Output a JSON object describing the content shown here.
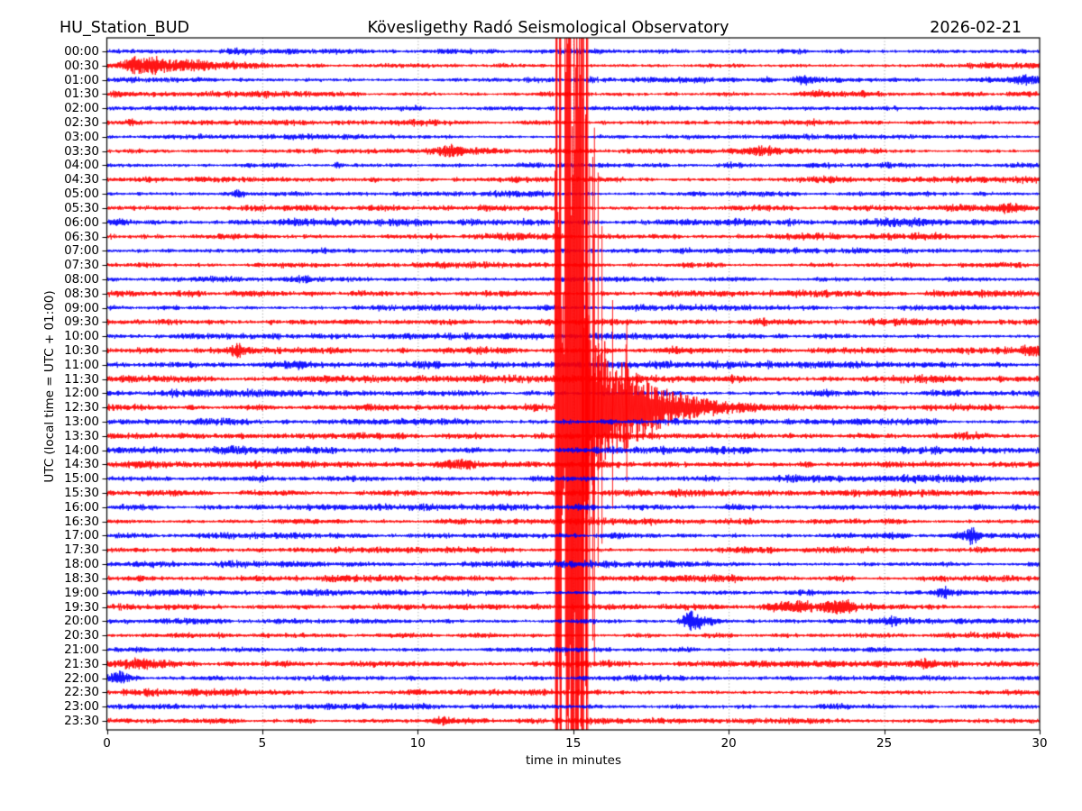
{
  "header": {
    "station": "HU_Station_BUD",
    "observatory": "Kövesligethy Radó Seismological Observatory",
    "date": "2026-02-21"
  },
  "axes": {
    "xlabel": "time in minutes",
    "ylabel": "UTC (local time = UTC + 01:00)",
    "x_tick_labels": [
      "0",
      "5",
      "10",
      "15",
      "20",
      "25",
      "30"
    ],
    "x_ticks_min": [
      0,
      5,
      10,
      15,
      20,
      25,
      30
    ],
    "x_gridlines_min": [
      5,
      10,
      15,
      20,
      25
    ],
    "x_range_min": [
      0,
      30
    ]
  },
  "chart_data": {
    "type": "line",
    "subtype": "helicorder",
    "minutes_per_row": 30,
    "rows_count": 48,
    "colors": {
      "b": "#0000ff",
      "r": "#ff0000",
      "frame": "#000000",
      "grid": "#999999"
    },
    "rows": [
      {
        "label": "00:00",
        "color": "b",
        "amp": 2.4,
        "events": []
      },
      {
        "label": "00:30",
        "color": "r",
        "amp": 2.4,
        "events": [
          [
            1.2,
            0.5,
            9
          ],
          [
            2.6,
            0.8,
            4
          ],
          [
            4.2,
            0.4,
            2.5
          ]
        ]
      },
      {
        "label": "01:00",
        "color": "b",
        "amp": 2.3,
        "events": [
          [
            21.2,
            0.15,
            3
          ],
          [
            22.4,
            0.2,
            4
          ],
          [
            29.6,
            0.35,
            5
          ]
        ]
      },
      {
        "label": "01:30",
        "color": "r",
        "amp": 2.5,
        "events": [
          [
            0.5,
            0.3,
            3
          ],
          [
            22.8,
            0.3,
            3
          ]
        ]
      },
      {
        "label": "02:00",
        "color": "b",
        "amp": 2.2,
        "events": [
          [
            10.0,
            0.12,
            3
          ]
        ]
      },
      {
        "label": "02:30",
        "color": "r",
        "amp": 2.4,
        "events": [
          [
            0.8,
            0.15,
            3
          ]
        ]
      },
      {
        "label": "03:00",
        "color": "b",
        "amp": 2.2,
        "events": []
      },
      {
        "label": "03:30",
        "color": "r",
        "amp": 2.4,
        "events": [
          [
            11.1,
            0.35,
            6
          ],
          [
            12.3,
            0.3,
            2.5
          ],
          [
            21.0,
            0.5,
            4
          ]
        ]
      },
      {
        "label": "04:00",
        "color": "b",
        "amp": 2.4,
        "events": [
          [
            7.4,
            0.08,
            4
          ]
        ]
      },
      {
        "label": "04:30",
        "color": "r",
        "amp": 2.7,
        "events": []
      },
      {
        "label": "05:00",
        "color": "b",
        "amp": 2.4,
        "events": [
          [
            4.3,
            0.15,
            2.5
          ]
        ]
      },
      {
        "label": "05:30",
        "color": "r",
        "amp": 2.7,
        "events": [
          [
            27.4,
            0.4,
            3
          ],
          [
            29.0,
            0.4,
            4
          ]
        ]
      },
      {
        "label": "06:00",
        "color": "b",
        "amp": 2.8,
        "events": [
          [
            0.3,
            0.2,
            3
          ],
          [
            25.5,
            0.8,
            2.5
          ]
        ]
      },
      {
        "label": "06:30",
        "color": "r",
        "amp": 2.8,
        "events": []
      },
      {
        "label": "07:00",
        "color": "b",
        "amp": 2.5,
        "events": []
      },
      {
        "label": "07:30",
        "color": "r",
        "amp": 2.6,
        "events": []
      },
      {
        "label": "08:00",
        "color": "b",
        "amp": 2.7,
        "events": []
      },
      {
        "label": "08:30",
        "color": "r",
        "amp": 2.9,
        "events": []
      },
      {
        "label": "09:00",
        "color": "b",
        "amp": 2.7,
        "events": []
      },
      {
        "label": "09:30",
        "color": "r",
        "amp": 3.0,
        "events": []
      },
      {
        "label": "10:00",
        "color": "b",
        "amp": 2.7,
        "events": []
      },
      {
        "label": "10:30",
        "color": "r",
        "amp": 3.0,
        "events": [
          [
            4.2,
            0.2,
            5
          ],
          [
            29.7,
            0.3,
            5
          ]
        ]
      },
      {
        "label": "11:00",
        "color": "b",
        "amp": 2.8,
        "events": [
          [
            5.9,
            0.5,
            3
          ]
        ]
      },
      {
        "label": "11:30",
        "color": "r",
        "amp": 3.0,
        "events": [
          [
            0.6,
            0.15,
            3
          ]
        ]
      },
      {
        "label": "12:00",
        "color": "b",
        "amp": 2.7,
        "events": []
      },
      {
        "label": "12:30",
        "color": "r",
        "amp": 2.9,
        "events": [],
        "main_event_row": true
      },
      {
        "label": "13:00",
        "color": "b",
        "amp": 2.8,
        "events": []
      },
      {
        "label": "13:30",
        "color": "r",
        "amp": 3.0,
        "events": []
      },
      {
        "label": "14:00",
        "color": "b",
        "amp": 2.9,
        "events": []
      },
      {
        "label": "14:30",
        "color": "r",
        "amp": 2.9,
        "events": [
          [
            11.2,
            0.3,
            4
          ]
        ]
      },
      {
        "label": "15:00",
        "color": "b",
        "amp": 2.9,
        "events": []
      },
      {
        "label": "15:30",
        "color": "r",
        "amp": 2.9,
        "events": []
      },
      {
        "label": "16:00",
        "color": "b",
        "amp": 2.6,
        "events": []
      },
      {
        "label": "16:30",
        "color": "r",
        "amp": 2.7,
        "events": []
      },
      {
        "label": "17:00",
        "color": "b",
        "amp": 2.6,
        "events": [
          [
            27.8,
            0.15,
            9
          ],
          [
            27.5,
            0.4,
            3
          ]
        ]
      },
      {
        "label": "17:30",
        "color": "r",
        "amp": 2.7,
        "events": []
      },
      {
        "label": "18:00",
        "color": "b",
        "amp": 2.6,
        "events": []
      },
      {
        "label": "18:30",
        "color": "r",
        "amp": 2.7,
        "events": [
          [
            19.5,
            1.0,
            2.5
          ]
        ]
      },
      {
        "label": "19:00",
        "color": "b",
        "amp": 2.6,
        "events": [
          [
            26.9,
            0.2,
            4
          ]
        ]
      },
      {
        "label": "19:30",
        "color": "r",
        "amp": 2.7,
        "events": [
          [
            21.6,
            0.3,
            3
          ],
          [
            22.3,
            0.4,
            4
          ],
          [
            23.5,
            0.35,
            8
          ]
        ]
      },
      {
        "label": "20:00",
        "color": "b",
        "amp": 2.6,
        "events": [
          [
            18.8,
            0.2,
            14
          ],
          [
            19.35,
            0.3,
            4
          ],
          [
            25.3,
            0.15,
            3
          ]
        ]
      },
      {
        "label": "20:30",
        "color": "r",
        "amp": 2.7,
        "events": []
      },
      {
        "label": "21:00",
        "color": "b",
        "amp": 2.5,
        "events": []
      },
      {
        "label": "21:30",
        "color": "r",
        "amp": 2.8,
        "events": [
          [
            1.0,
            0.5,
            4
          ],
          [
            22.5,
            1.5,
            2.5
          ],
          [
            26.3,
            0.2,
            5
          ]
        ]
      },
      {
        "label": "22:00",
        "color": "b",
        "amp": 2.6,
        "events": [
          [
            0.35,
            0.2,
            7
          ]
        ]
      },
      {
        "label": "22:30",
        "color": "r",
        "amp": 2.7,
        "events": [
          [
            10.0,
            0.3,
            2.5
          ]
        ]
      },
      {
        "label": "23:00",
        "color": "b",
        "amp": 2.4,
        "events": []
      },
      {
        "label": "23:30",
        "color": "r",
        "amp": 2.5,
        "events": [
          [
            10.8,
            0.3,
            3
          ]
        ]
      }
    ],
    "main_event": {
      "row_label": "12:30",
      "onset_min": 14.4,
      "envelope_segments_min_amp": [
        [
          14.4,
          14.6,
          750
        ],
        [
          14.6,
          14.72,
          240
        ],
        [
          14.72,
          15.27,
          850
        ]
      ],
      "spike_zone_min": [
        15.27,
        16.9
      ],
      "spike_base_amp": 130,
      "coda_start_amp": 45,
      "coda_decay_min": 1.5,
      "coda_end_min": 20.5,
      "note": "amplitude clipped; saturated band spans full plot height"
    }
  }
}
